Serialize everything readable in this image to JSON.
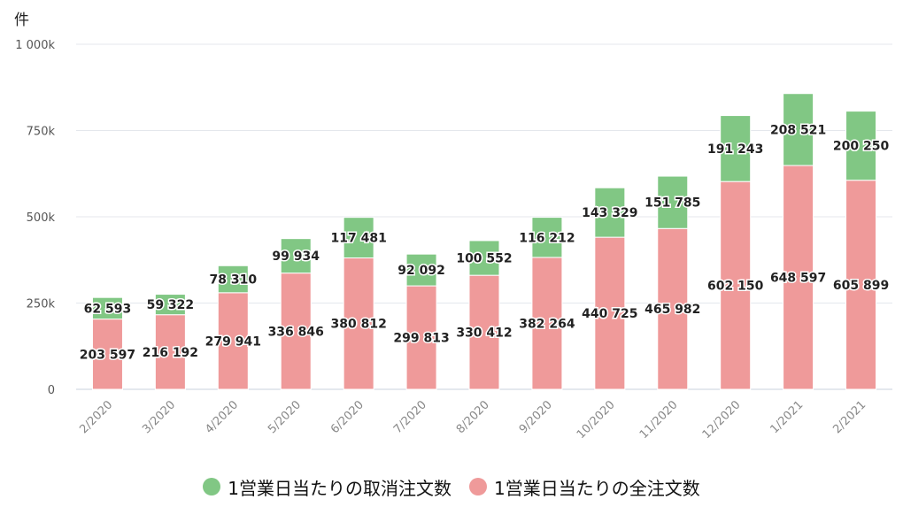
{
  "chart_data": {
    "type": "bar",
    "stacked": true,
    "y_unit": "件",
    "ylim": [
      0,
      1000000
    ],
    "yticks": [
      0,
      250000,
      500000,
      750000,
      1000000
    ],
    "ytick_labels": [
      "0",
      "250k",
      "500k",
      "750k",
      "1 000k"
    ],
    "grid": true,
    "legend_position": "bottom",
    "categories": [
      "2/2020",
      "3/2020",
      "4/2020",
      "5/2020",
      "6/2020",
      "7/2020",
      "8/2020",
      "9/2020",
      "10/2020",
      "11/2020",
      "12/2020",
      "1/2021",
      "2/2021"
    ],
    "series": [
      {
        "name": "1営業日当たりの全注文数",
        "color": "#ef9a9a",
        "values": [
          203597,
          216192,
          279941,
          336846,
          380812,
          299813,
          330412,
          382264,
          440725,
          465982,
          602150,
          648597,
          605899
        ],
        "labels": [
          "203 597",
          "216 192",
          "279 941",
          "336 846",
          "380 812",
          "299 813",
          "330 412",
          "382 264",
          "440 725",
          "465 982",
          "602 150",
          "648 597",
          "605 899"
        ]
      },
      {
        "name": "1営業日当たりの取消注文数",
        "color": "#81c784",
        "values": [
          62593,
          59322,
          78310,
          99934,
          117481,
          92092,
          100552,
          116212,
          143329,
          151785,
          191243,
          208521,
          200250
        ],
        "labels": [
          "62 593",
          "59 322",
          "78 310",
          "99 934",
          "117 481",
          "92 092",
          "100 552",
          "116 212",
          "143 329",
          "151 785",
          "191 243",
          "208 521",
          "200 250"
        ]
      }
    ]
  },
  "legend": [
    {
      "label": "1営業日当たりの取消注文数",
      "color": "#81c784"
    },
    {
      "label": "1営業日当たりの全注文数",
      "color": "#ef9a9a"
    }
  ]
}
